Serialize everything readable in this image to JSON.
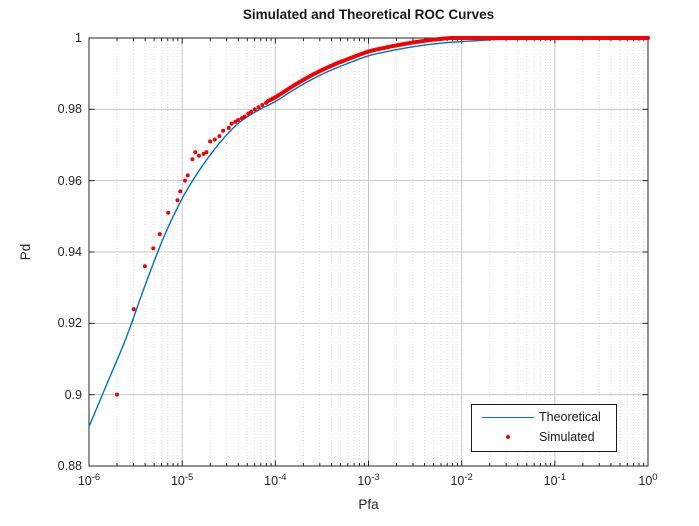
{
  "chart_data": {
    "type": "line+scatter",
    "title": "Simulated and Theoretical ROC Curves",
    "xlabel": "Pfa",
    "ylabel": "Pd",
    "x_scale": "log10",
    "xlim": [
      1e-06,
      1
    ],
    "ylim": [
      0.88,
      1
    ],
    "grid": {
      "major": true,
      "minor_vertical_dotted": true,
      "legend_position": "southeast"
    },
    "x_ticks": [
      {
        "base": "10",
        "exp": "-6"
      },
      {
        "base": "10",
        "exp": "-5"
      },
      {
        "base": "10",
        "exp": "-4"
      },
      {
        "base": "10",
        "exp": "-3"
      },
      {
        "base": "10",
        "exp": "-2"
      },
      {
        "base": "10",
        "exp": "-1"
      },
      {
        "base": "10",
        "exp": "0"
      }
    ],
    "x_tick_exponents": [
      -6,
      -5,
      -4,
      -3,
      -2,
      -1,
      0
    ],
    "y_ticks": [
      {
        "value": 0.88,
        "label": "0.88"
      },
      {
        "value": 0.9,
        "label": "0.9"
      },
      {
        "value": 0.92,
        "label": "0.92"
      },
      {
        "value": 0.94,
        "label": "0.94"
      },
      {
        "value": 0.96,
        "label": "0.96"
      },
      {
        "value": 0.98,
        "label": "0.98"
      },
      {
        "value": 1.0,
        "label": "1"
      }
    ],
    "series": [
      {
        "name": "Theoretical",
        "type": "line",
        "color": "#0072BD",
        "line_width": 1.4,
        "points_log10pfa_pd": [
          [
            -6.0,
            0.891
          ],
          [
            -5.8,
            0.9035
          ],
          [
            -5.6,
            0.916
          ],
          [
            -5.4,
            0.9305
          ],
          [
            -5.2,
            0.944
          ],
          [
            -5.0,
            0.955
          ],
          [
            -4.8,
            0.9635
          ],
          [
            -4.6,
            0.9705
          ],
          [
            -4.4,
            0.976
          ],
          [
            -4.2,
            0.9795
          ],
          [
            -4.0,
            0.9822
          ],
          [
            -3.8,
            0.9855
          ],
          [
            -3.6,
            0.9885
          ],
          [
            -3.4,
            0.991
          ],
          [
            -3.2,
            0.9931
          ],
          [
            -3.0,
            0.995
          ],
          [
            -2.8,
            0.9962
          ],
          [
            -2.6,
            0.9972
          ],
          [
            -2.4,
            0.998
          ],
          [
            -2.2,
            0.9986
          ],
          [
            -2.0,
            0.999
          ],
          [
            -1.8,
            0.9993
          ],
          [
            -1.6,
            0.9996
          ],
          [
            -1.4,
            0.9997
          ],
          [
            -1.2,
            0.9998
          ],
          [
            -1.0,
            0.9999
          ],
          [
            -0.8,
            1.0
          ],
          [
            -0.6,
            1.0
          ],
          [
            -0.4,
            1.0
          ],
          [
            -0.2,
            1.0
          ],
          [
            0.0,
            1.0
          ]
        ]
      },
      {
        "name": "Simulated",
        "type": "scatter",
        "color": "#f40000",
        "marker_radius": 2,
        "points_log10pfa_pd": [
          [
            -5.7,
            0.9
          ],
          [
            -5.52,
            0.924
          ],
          [
            -5.4,
            0.936
          ],
          [
            -5.31,
            0.941
          ],
          [
            -5.24,
            0.945
          ],
          [
            -5.15,
            0.951
          ],
          [
            -5.05,
            0.9545
          ],
          [
            -5.02,
            0.957
          ],
          [
            -4.97,
            0.96
          ],
          [
            -4.94,
            0.9615
          ],
          [
            -4.89,
            0.966
          ],
          [
            -4.86,
            0.968
          ],
          [
            -4.82,
            0.967
          ],
          [
            -4.77,
            0.9675
          ],
          [
            -4.74,
            0.968
          ],
          [
            -4.7,
            0.971
          ],
          [
            -4.65,
            0.9715
          ],
          [
            -4.6,
            0.9725
          ],
          [
            -4.56,
            0.974
          ],
          [
            -4.5,
            0.9748
          ],
          [
            -4.47,
            0.976
          ],
          [
            -4.43,
            0.9765
          ],
          [
            -4.4,
            0.977
          ],
          [
            -4.36,
            0.9775
          ],
          [
            -4.33,
            0.978
          ],
          [
            -4.29,
            0.9788
          ],
          [
            -4.26,
            0.9793
          ],
          [
            -4.22,
            0.98
          ],
          [
            -4.18,
            0.9806
          ],
          [
            -4.14,
            0.9812
          ],
          [
            -4.1,
            0.9818
          ]
        ],
        "dense_band": {
          "note": "simulated points hug the theoretical curve from here up, saturating at Pd=1 near Pfa=1e-2",
          "log10_start": -4.08,
          "log10_end": 0,
          "count": 250,
          "pd_offset": 0.0012,
          "pd_max": 1.0
        }
      }
    ],
    "colors": {
      "axis": "#262626",
      "grid_major": "#c7c7c7",
      "grid_minor": "#dadada",
      "background": "#ffffff",
      "legend_border": "#1a1a1a"
    }
  }
}
